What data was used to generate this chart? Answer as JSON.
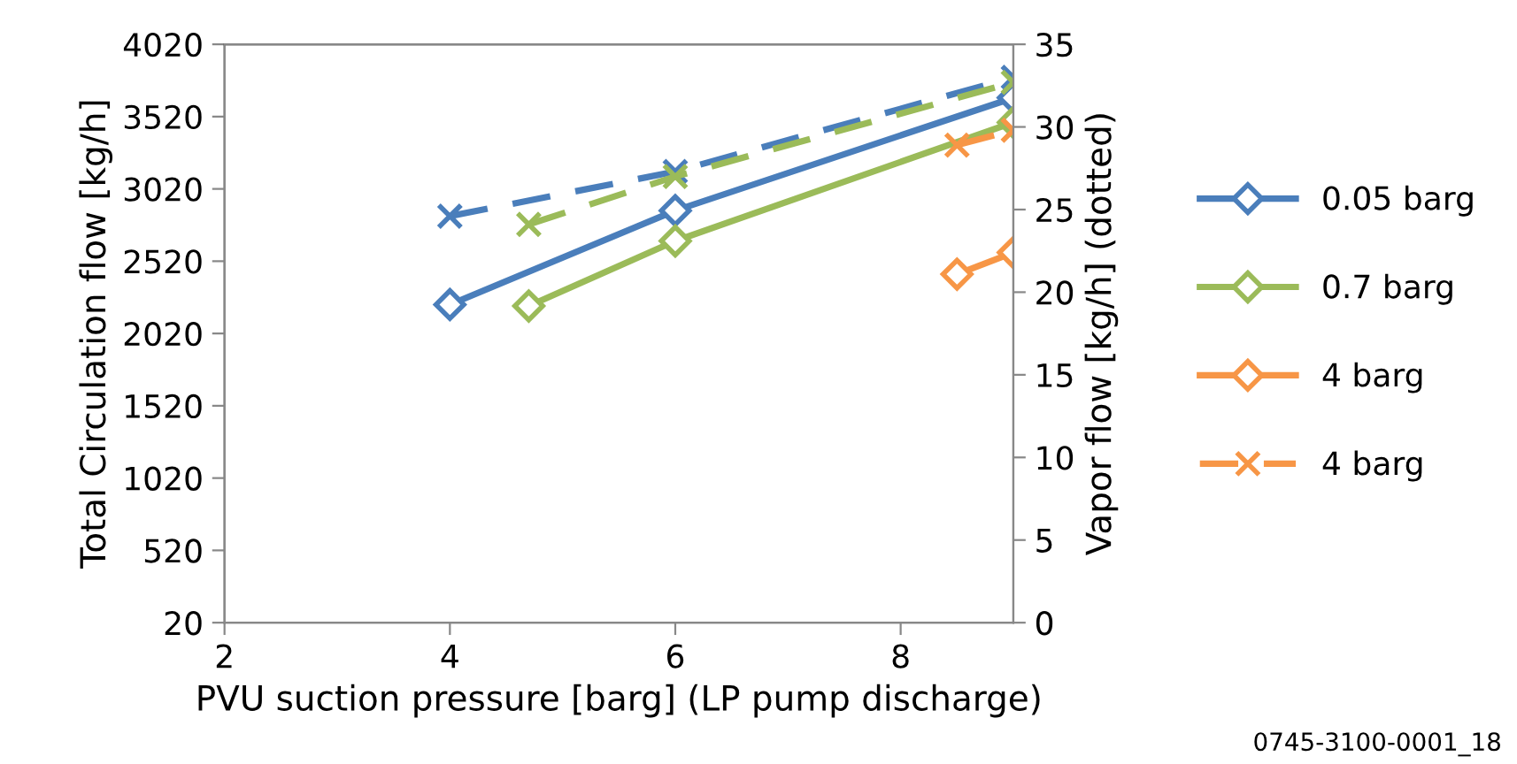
{
  "chart_data": {
    "type": "line",
    "xlabel": "PVU suction pressure [barg] (LP pump discharge)",
    "ylabel": "Total Circulation flow [kg/h]",
    "y2label": "Vapor flow [kg/h] (dotted)",
    "xlim": [
      2,
      9
    ],
    "xticks": [
      2,
      4,
      6,
      8
    ],
    "ylim": [
      20,
      4020
    ],
    "yticks": [
      20,
      520,
      1020,
      1520,
      2020,
      2520,
      3020,
      3520,
      4020
    ],
    "y2lim": [
      0,
      35
    ],
    "y2ticks": [
      0,
      5,
      10,
      15,
      20,
      25,
      30,
      35
    ],
    "grid": false,
    "legend": "right",
    "series": [
      {
        "name": "0.05 barg",
        "color": "#4a7ebb",
        "x": [
          4,
          6,
          9
        ],
        "values": [
          2220,
          2870,
          3650
        ],
        "marker": "diamond",
        "line_style": "solid"
      },
      {
        "name": "0.7 barg",
        "color": "#9bbb59",
        "x": [
          4.7,
          6,
          9
        ],
        "values": [
          2210,
          2660,
          3480
        ],
        "marker": "diamond",
        "line_style": "solid"
      },
      {
        "name": "4 barg",
        "color": "#f79646",
        "x": [
          8.5,
          9
        ],
        "values": [
          2430,
          2580
        ],
        "marker": "diamond",
        "line_style": "solid"
      },
      {
        "color": "#4a7ebb",
        "x": [
          4,
          6,
          9
        ],
        "values": [
          24.6,
          27.3,
          33.0
        ],
        "axis": "y2",
        "marker": "cross",
        "line_style": "dashed"
      },
      {
        "color": "#9bbb59",
        "x": [
          4.7,
          6,
          9
        ],
        "values": [
          24.1,
          27.0,
          32.7
        ],
        "axis": "y2",
        "marker": "cross",
        "line_style": "dashed"
      },
      {
        "name": "4 barg",
        "color": "#f79646",
        "x": [
          8.5,
          9
        ],
        "values": [
          28.9,
          29.8
        ],
        "axis": "y2",
        "marker": "cross",
        "line_style": "dashed"
      }
    ],
    "annotations": [
      "0745-3100-0001_18"
    ]
  }
}
